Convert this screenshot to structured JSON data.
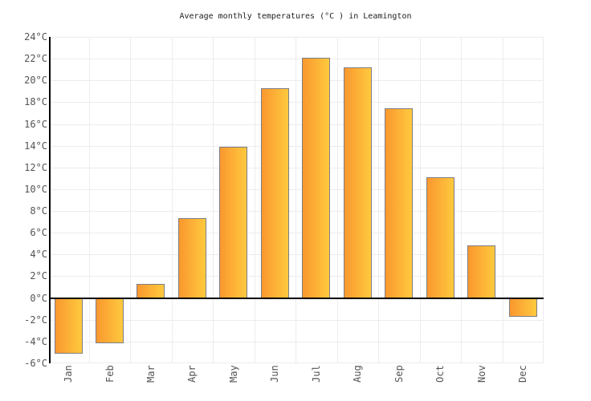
{
  "title": "Average monthly temperatures (°C ) in Leamington",
  "chart_data": {
    "type": "bar",
    "title": "Average monthly temperatures (°C ) in Leamington",
    "categories": [
      "Jan",
      "Feb",
      "Mar",
      "Apr",
      "May",
      "Jun",
      "Jul",
      "Aug",
      "Sep",
      "Oct",
      "Nov",
      "Dec"
    ],
    "values": [
      -5.1,
      -4.1,
      1.3,
      7.4,
      13.9,
      19.3,
      22.1,
      21.2,
      17.5,
      11.1,
      4.9,
      -1.7
    ],
    "xlabel": "",
    "ylabel": "",
    "ylim": [
      -6,
      24
    ],
    "ytick_step": 2,
    "ytick_labels": [
      "24°C",
      "22°C",
      "20°C",
      "18°C",
      "16°C",
      "14°C",
      "12°C",
      "10°C",
      "8°C",
      "6°C",
      "4°C",
      "2°C",
      "0°C",
      "-2°C",
      "-4°C",
      "-6°C"
    ],
    "grid": true,
    "legend": "none"
  },
  "colors": {
    "background": "#ffffff",
    "bar_gradient_left": "#f9982f",
    "bar_gradient_right": "#ffc93e",
    "bar_border": "#7d7d85",
    "grid_line": "#ececec",
    "axis_line": "#000000",
    "title_text": "#222222",
    "tick_text": "#545454"
  }
}
